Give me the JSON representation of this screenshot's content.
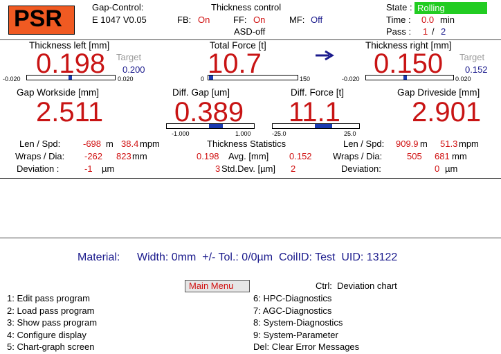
{
  "header": {
    "logo": "PSR",
    "gap_control_label": "Gap-Control:",
    "version": "E 1047 V0.05",
    "title": "Thickness control",
    "fb_label": "FB:",
    "fb_value": "On",
    "ff_label": "FF:",
    "ff_value": "On",
    "mf_label": "MF:",
    "mf_value": "Off",
    "asd": "ASD-off",
    "state_label": "State :",
    "state_value": "Rolling",
    "time_label": "Time :",
    "time_value": "0.0",
    "time_unit": "min",
    "pass_label": "Pass :",
    "pass_current": "1",
    "pass_sep": "/",
    "pass_total": "2"
  },
  "panels": {
    "thickness_left": {
      "label": "Thickness left [mm]",
      "value": "0.198",
      "target_label": "Target",
      "target": "0.200",
      "min": "-0.020",
      "max": "0.020"
    },
    "total_force": {
      "label": "Total Force [t]",
      "value": "10.7",
      "min": "0",
      "max": "150"
    },
    "thickness_right": {
      "label": "Thickness right [mm]",
      "value": "0.150",
      "target_label": "Target",
      "target": "0.152",
      "min": "-0.020",
      "max": "0.020"
    },
    "gap_workside": {
      "label": "Gap Workside [mm]",
      "value": "2.511"
    },
    "diff_gap": {
      "label": "Diff. Gap [um]",
      "value": "0.389",
      "min": "-1.000",
      "max": "1.000"
    },
    "diff_force": {
      "label": "Diff. Force [t]",
      "value": "11.1",
      "min": "-25.0",
      "max": "25.0"
    },
    "gap_driveside": {
      "label": "Gap Driveside [mm]",
      "value": "2.901"
    }
  },
  "stats": {
    "left": {
      "len_label": "Len / Spd:",
      "len_value": "-698",
      "len_unit": "m",
      "spd_value": "38.4",
      "spd_unit": "mpm",
      "wraps_label": "Wraps / Dia:",
      "wraps_value": "-262",
      "dia_value": "823",
      "dia_unit": "mm",
      "dev_label": "Deviation :",
      "dev_value": "-1",
      "dev_unit": "µm"
    },
    "center": {
      "title": "Thickness Statistics",
      "avg_left": "0.198",
      "avg_label": "Avg. [mm]",
      "avg_right": "0.152",
      "std_left": "3",
      "std_label": "Std.Dev. [µm]",
      "std_right": "2"
    },
    "right": {
      "len_label": "Len / Spd:",
      "len_value": "909.9",
      "len_unit": "m",
      "spd_value": "51.3",
      "spd_unit": "mpm",
      "wraps_label": "Wraps / Dia:",
      "wraps_value": "505",
      "dia_value": "681",
      "dia_unit": "mm",
      "dev_label": "Deviation:",
      "dev_value": "0",
      "dev_unit": "µm"
    }
  },
  "material": {
    "label": "Material:",
    "details": "Width: 0mm  +/- Tol.: 0/0µm  CoilID: Test  UID: 13122"
  },
  "menu": {
    "title": "Main Menu",
    "ctrl": "Ctrl:  Deviation chart",
    "items": [
      "1: Edit pass program",
      "2: Load pass program",
      "3: Show pass program",
      "4: Configure display",
      "5: Chart-graph screen",
      "6: HPC-Diagnostics",
      "7: AGC-Diagnostics",
      "8: System-Diagnostics",
      "9: System-Parameter",
      "Del: Clear Error Messages"
    ]
  }
}
